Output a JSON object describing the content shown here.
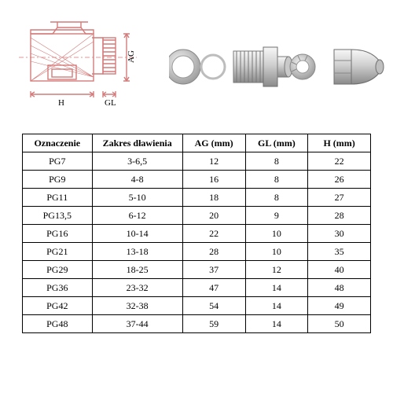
{
  "drawing": {
    "labels": {
      "AG": "AG",
      "GL": "GL",
      "H": "H"
    },
    "stroke": "#d47a7a",
    "stroke_width": 1.4
  },
  "photo": {
    "gradient_light": "#f7f7f7",
    "gradient_mid": "#cfcfcf",
    "gradient_dark": "#8a8a8a"
  },
  "table": {
    "columns": [
      "Oznaczenie",
      "Zakres dławienia",
      "AG (mm)",
      "GL (mm)",
      "H (mm)"
    ],
    "rows": [
      [
        "PG7",
        "3-6,5",
        "12",
        "8",
        "22"
      ],
      [
        "PG9",
        "4-8",
        "16",
        "8",
        "26"
      ],
      [
        "PG11",
        "5-10",
        "18",
        "8",
        "27"
      ],
      [
        "PG13,5",
        "6-12",
        "20",
        "9",
        "28"
      ],
      [
        "PG16",
        "10-14",
        "22",
        "10",
        "30"
      ],
      [
        "PG21",
        "13-18",
        "28",
        "10",
        "35"
      ],
      [
        "PG29",
        "18-25",
        "37",
        "12",
        "40"
      ],
      [
        "PG36",
        "23-32",
        "47",
        "14",
        "48"
      ],
      [
        "PG42",
        "32-38",
        "54",
        "14",
        "49"
      ],
      [
        "PG48",
        "37-44",
        "59",
        "14",
        "50"
      ]
    ],
    "border_color": "#000000",
    "font_size_pt": 9,
    "cell_align": "center"
  }
}
